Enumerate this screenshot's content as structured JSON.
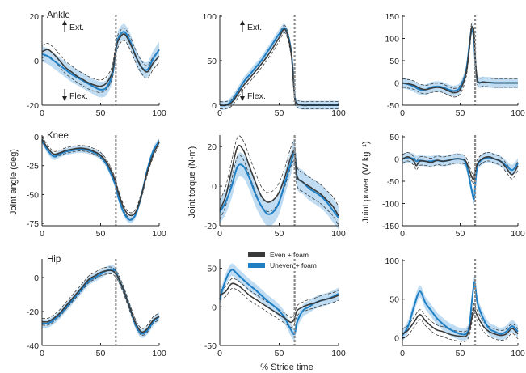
{
  "figure": {
    "xlabel": "% Stride time",
    "row_ylabels": [
      "",
      "Joint angle (deg)",
      ""
    ],
    "col_ylabels_row2": [
      "Joint angle (deg)",
      "Joint torque (N-m)",
      "Joint power (W kg⁻¹)"
    ],
    "row_labels": [
      "Ankle",
      "Knee",
      "Hip"
    ],
    "annotations": {
      "ext": "Ext.",
      "flex": "Flex."
    },
    "legend": [
      "Even + foam",
      "Uneven + foam"
    ]
  },
  "colors": {
    "even": "#3a3a3a",
    "uneven": "#1f7fc4",
    "band": "#a9d0ee",
    "marker": "#8a8a8a",
    "axis": "#222222"
  },
  "chart_data": [
    {
      "id": "ankle-angle",
      "type": "line",
      "row": 0,
      "col": 0,
      "title": "",
      "label": "Ankle",
      "xlabel": "",
      "ylabel": "",
      "xlim": [
        0,
        100
      ],
      "ylim": [
        -20,
        20
      ],
      "xticks": [
        0,
        50,
        100
      ],
      "yticks": [
        -20,
        0,
        20
      ],
      "annotate": true,
      "vline": 63,
      "band_width": 3.5,
      "x": [
        0,
        5,
        10,
        15,
        20,
        25,
        30,
        35,
        40,
        45,
        50,
        55,
        60,
        63,
        65,
        70,
        75,
        80,
        85,
        90,
        95,
        100
      ],
      "series": [
        {
          "name": "Even + foam",
          "values": [
            4,
            5,
            3,
            0,
            -3,
            -5,
            -7,
            -8.5,
            -10,
            -11,
            -11.5,
            -10,
            -5,
            5,
            9,
            12,
            8,
            2,
            -3,
            -5,
            -1,
            2
          ]
        },
        {
          "name": "Uneven + foam",
          "values": [
            3,
            2,
            0,
            -2,
            -4,
            -6,
            -7.5,
            -9,
            -10.5,
            -12,
            -13,
            -12,
            -6,
            4,
            10,
            13,
            9,
            2,
            -3,
            -4,
            1,
            5
          ]
        }
      ]
    },
    {
      "id": "ankle-torque",
      "type": "line",
      "row": 0,
      "col": 1,
      "title": "",
      "label": "",
      "xlabel": "",
      "ylabel": "",
      "xlim": [
        0,
        100
      ],
      "ylim": [
        0,
        100
      ],
      "xticks": [
        0,
        50,
        100
      ],
      "yticks": [
        0,
        50,
        100
      ],
      "annotate": true,
      "vline": 63,
      "band_width": 5,
      "x": [
        0,
        5,
        10,
        15,
        20,
        25,
        30,
        35,
        40,
        45,
        50,
        55,
        60,
        63,
        65,
        70,
        75,
        80,
        85,
        90,
        95,
        100
      ],
      "series": [
        {
          "name": "Even + foam",
          "values": [
            0,
            0,
            3,
            12,
            22,
            30,
            38,
            46,
            55,
            65,
            76,
            85,
            60,
            10,
            2,
            0,
            0,
            0,
            0,
            0,
            0,
            0
          ]
        },
        {
          "name": "Uneven + foam",
          "values": [
            0,
            0,
            5,
            15,
            26,
            34,
            42,
            50,
            60,
            70,
            80,
            86,
            62,
            12,
            2,
            0,
            0,
            0,
            0,
            0,
            0,
            0
          ]
        }
      ]
    },
    {
      "id": "ankle-power",
      "type": "line",
      "row": 0,
      "col": 2,
      "title": "",
      "label": "",
      "xlabel": "",
      "ylabel": "",
      "xlim": [
        0,
        100
      ],
      "ylim": [
        -50,
        150
      ],
      "xticks": [
        0,
        50,
        100
      ],
      "yticks": [
        -50,
        0,
        50,
        100,
        150
      ],
      "annotate": false,
      "vline": 63,
      "band_width": 12,
      "x": [
        0,
        5,
        10,
        15,
        20,
        25,
        30,
        35,
        40,
        45,
        50,
        55,
        58,
        60,
        62,
        63,
        65,
        70,
        75,
        80,
        85,
        90,
        95,
        100
      ],
      "series": [
        {
          "name": "Even + foam",
          "values": [
            0,
            -2,
            -5,
            -12,
            -15,
            -12,
            -10,
            -12,
            -18,
            -22,
            -15,
            20,
            80,
            125,
            110,
            60,
            5,
            2,
            1,
            0,
            0,
            0,
            0,
            0
          ]
        },
        {
          "name": "Uneven + foam",
          "values": [
            0,
            -3,
            -8,
            -15,
            -15,
            -10,
            -8,
            -10,
            -15,
            -18,
            -10,
            25,
            85,
            120,
            100,
            50,
            5,
            2,
            1,
            0,
            0,
            0,
            0,
            0
          ]
        }
      ]
    },
    {
      "id": "knee-angle",
      "type": "line",
      "row": 1,
      "col": 0,
      "title": "",
      "label": "Knee",
      "xlabel": "",
      "ylabel": "Joint angle (deg)",
      "xlim": [
        0,
        100
      ],
      "ylim": [
        -77,
        0
      ],
      "xticks": [
        0,
        50,
        100
      ],
      "yticks": [
        -75,
        -50,
        -25,
        0
      ],
      "annotate": false,
      "vline": 63,
      "band_width": 3,
      "x": [
        0,
        5,
        10,
        15,
        20,
        25,
        30,
        35,
        40,
        45,
        50,
        55,
        60,
        63,
        65,
        70,
        75,
        80,
        85,
        90,
        95,
        100
      ],
      "series": [
        {
          "name": "Even + foam",
          "values": [
            -2,
            -10,
            -15,
            -14,
            -12,
            -11,
            -10,
            -10,
            -11,
            -13,
            -16,
            -22,
            -32,
            -40,
            -48,
            -62,
            -68,
            -65,
            -50,
            -30,
            -15,
            -5
          ]
        },
        {
          "name": "Uneven + foam",
          "values": [
            -3,
            -12,
            -17,
            -15,
            -13,
            -12,
            -11,
            -11,
            -12,
            -14,
            -17,
            -24,
            -35,
            -43,
            -52,
            -66,
            -72,
            -67,
            -50,
            -28,
            -12,
            -4
          ]
        }
      ]
    },
    {
      "id": "knee-torque",
      "type": "line",
      "row": 1,
      "col": 1,
      "title": "",
      "label": "",
      "xlabel": "",
      "ylabel": "Joint torque (N-m)",
      "xlim": [
        0,
        100
      ],
      "ylim": [
        -20,
        25
      ],
      "xticks": [
        0,
        50,
        100
      ],
      "yticks": [
        -20,
        0,
        20
      ],
      "annotate": false,
      "vline": 63,
      "band_width": 6,
      "x": [
        0,
        5,
        10,
        15,
        20,
        25,
        30,
        35,
        40,
        45,
        50,
        55,
        60,
        63,
        65,
        70,
        75,
        80,
        85,
        90,
        95,
        100
      ],
      "series": [
        {
          "name": "Even + foam",
          "values": [
            -12,
            -5,
            8,
            20,
            18,
            10,
            2,
            -5,
            -8,
            -7,
            -3,
            5,
            15,
            17,
            5,
            2,
            0,
            -2,
            -4,
            -7,
            -10,
            -15
          ]
        },
        {
          "name": "Uneven + foam",
          "values": [
            -13,
            -8,
            0,
            10,
            10,
            4,
            -4,
            -10,
            -14,
            -13,
            -8,
            2,
            12,
            17,
            5,
            2,
            -1,
            -3,
            -5,
            -8,
            -12,
            -16
          ]
        }
      ]
    },
    {
      "id": "knee-power",
      "type": "line",
      "row": 1,
      "col": 2,
      "title": "",
      "label": "",
      "xlabel": "",
      "ylabel": "Joint power (W kg⁻¹)",
      "xlim": [
        0,
        100
      ],
      "ylim": [
        -150,
        50
      ],
      "xticks": [
        0,
        50,
        100
      ],
      "yticks": [
        -150,
        -100,
        -50,
        0,
        50
      ],
      "annotate": false,
      "vline": 63,
      "band_width": 12,
      "x": [
        0,
        5,
        10,
        12,
        15,
        20,
        25,
        30,
        35,
        40,
        45,
        50,
        55,
        60,
        62,
        63,
        65,
        70,
        75,
        80,
        85,
        90,
        95,
        100
      ],
      "series": [
        {
          "name": "Even + foam",
          "values": [
            0,
            5,
            -5,
            -15,
            -5,
            -5,
            -8,
            -3,
            -5,
            -3,
            0,
            0,
            -5,
            -40,
            -45,
            -30,
            -10,
            2,
            5,
            0,
            -5,
            -20,
            -35,
            -15
          ]
        },
        {
          "name": "Uneven + foam",
          "values": [
            0,
            3,
            0,
            -5,
            -3,
            -5,
            -5,
            -3,
            -5,
            -3,
            0,
            0,
            -10,
            -70,
            -90,
            -60,
            -15,
            0,
            3,
            0,
            -5,
            -15,
            -25,
            -10
          ]
        }
      ]
    },
    {
      "id": "hip-angle",
      "type": "line",
      "row": 2,
      "col": 0,
      "title": "",
      "label": "Hip",
      "xlabel": "",
      "ylabel": "",
      "xlim": [
        0,
        100
      ],
      "ylim": [
        -40,
        10
      ],
      "xticks": [
        0,
        50,
        100
      ],
      "yticks": [
        -40,
        -20,
        0
      ],
      "annotate": false,
      "vline": 63,
      "band_width": 2.5,
      "x": [
        0,
        5,
        10,
        15,
        20,
        25,
        30,
        35,
        40,
        45,
        50,
        55,
        60,
        63,
        65,
        70,
        75,
        80,
        85,
        90,
        95,
        100
      ],
      "series": [
        {
          "name": "Even + foam",
          "values": [
            -26,
            -26,
            -24,
            -21,
            -17,
            -13,
            -9,
            -5,
            -1,
            1,
            3,
            4,
            4,
            2,
            0,
            -8,
            -18,
            -27,
            -32,
            -30,
            -25,
            -23
          ]
        },
        {
          "name": "Uneven + foam",
          "values": [
            -27,
            -27,
            -25,
            -22,
            -18,
            -14,
            -10,
            -6,
            -2,
            0,
            2,
            4,
            5,
            3,
            0,
            -8,
            -18,
            -28,
            -33,
            -31,
            -26,
            -23
          ]
        }
      ]
    },
    {
      "id": "hip-torque",
      "type": "line",
      "row": 2,
      "col": 1,
      "title": "",
      "label": "",
      "xlabel": "",
      "ylabel": "",
      "xlim": [
        0,
        100
      ],
      "ylim": [
        -50,
        60
      ],
      "xticks": [
        0,
        50,
        100
      ],
      "yticks": [
        -50,
        0,
        50
      ],
      "annotate": false,
      "vline": 63,
      "band_width": 8,
      "x": [
        0,
        5,
        10,
        15,
        20,
        25,
        30,
        35,
        40,
        45,
        50,
        55,
        60,
        63,
        65,
        70,
        75,
        80,
        85,
        90,
        95,
        100
      ],
      "series": [
        {
          "name": "Even + foam",
          "values": [
            15,
            20,
            30,
            28,
            22,
            15,
            10,
            5,
            0,
            -5,
            -10,
            -15,
            -20,
            -15,
            -5,
            0,
            3,
            5,
            8,
            10,
            12,
            15
          ]
        },
        {
          "name": "Uneven + foam",
          "values": [
            10,
            35,
            48,
            42,
            35,
            28,
            22,
            15,
            8,
            2,
            -5,
            -15,
            -30,
            -35,
            -20,
            -5,
            0,
            5,
            8,
            10,
            13,
            17
          ]
        }
      ]
    },
    {
      "id": "hip-power",
      "type": "line",
      "row": 2,
      "col": 2,
      "title": "",
      "label": "",
      "xlabel": "",
      "ylabel": "",
      "xlim": [
        0,
        100
      ],
      "ylim": [
        -10,
        100
      ],
      "xticks": [
        0,
        50,
        100
      ],
      "yticks": [
        0,
        50,
        100
      ],
      "annotate": false,
      "vline": 63,
      "band_width": 8,
      "x": [
        0,
        5,
        10,
        15,
        20,
        25,
        30,
        35,
        40,
        45,
        50,
        55,
        58,
        60,
        62,
        63,
        65,
        70,
        75,
        80,
        85,
        90,
        95,
        100
      ],
      "series": [
        {
          "name": "Even + foam",
          "values": [
            5,
            10,
            20,
            30,
            22,
            15,
            10,
            8,
            5,
            3,
            2,
            2,
            10,
            25,
            38,
            35,
            28,
            15,
            8,
            5,
            3,
            5,
            12,
            5
          ]
        },
        {
          "name": "Uneven + foam",
          "values": [
            3,
            15,
            40,
            60,
            45,
            35,
            25,
            18,
            12,
            8,
            5,
            5,
            15,
            45,
            70,
            68,
            45,
            25,
            12,
            8,
            5,
            8,
            15,
            8
          ]
        }
      ]
    }
  ]
}
